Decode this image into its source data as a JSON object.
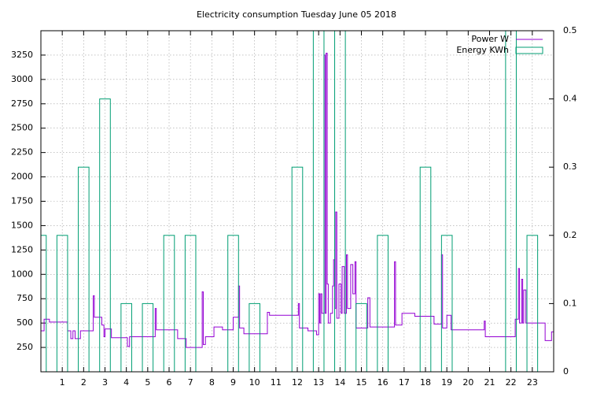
{
  "chart_data": {
    "type": "line",
    "title": "Electricity consumption Tuesday June 05 2018",
    "xlim": [
      0,
      24
    ],
    "xticks": [
      1,
      2,
      3,
      4,
      5,
      6,
      7,
      8,
      9,
      10,
      11,
      12,
      13,
      14,
      15,
      16,
      17,
      18,
      19,
      20,
      21,
      22,
      23
    ],
    "ylim": [
      0,
      3500
    ],
    "yticks": [
      250,
      500,
      750,
      1000,
      1250,
      1500,
      1750,
      2000,
      2250,
      2500,
      2750,
      3000,
      3250
    ],
    "y2lim": [
      0,
      0.5
    ],
    "y2ticks": [
      0,
      0.1,
      0.2,
      0.3,
      0.4,
      0.5
    ],
    "grid": true,
    "legend": "top-right",
    "series": [
      {
        "name": "Power W",
        "color": "#9400d3",
        "style": "steps",
        "x": [
          0,
          0.15,
          0.4,
          1.25,
          1.4,
          1.5,
          1.6,
          1.85,
          2.45,
          2.5,
          2.85,
          2.95,
          3.0,
          3.3,
          4.05,
          4.15,
          5.35,
          5.4,
          6.4,
          6.8,
          7.55,
          7.6,
          7.7,
          8.1,
          8.5,
          9.0,
          9.25,
          9.3,
          9.5,
          10.6,
          10.7,
          12.05,
          12.1,
          12.5,
          12.9,
          13.0,
          13.05,
          13.1,
          13.15,
          13.25,
          13.3,
          13.35,
          13.4,
          13.45,
          13.55,
          13.65,
          13.7,
          13.75,
          13.8,
          13.85,
          13.95,
          14.05,
          14.1,
          14.2,
          14.3,
          14.35,
          14.5,
          14.6,
          14.7,
          14.75,
          15.3,
          15.4,
          16.55,
          16.6,
          16.9,
          17.5,
          18.4,
          18.75,
          18.8,
          19.0,
          19.2,
          20.75,
          20.8,
          22.2,
          22.35,
          22.4,
          22.5,
          22.55,
          22.6,
          22.7,
          23.6,
          23.9,
          24
        ],
        "values": [
          420,
          540,
          510,
          420,
          340,
          420,
          340,
          420,
          780,
          560,
          480,
          360,
          440,
          350,
          260,
          360,
          650,
          430,
          340,
          250,
          820,
          280,
          360,
          460,
          430,
          560,
          880,
          450,
          390,
          610,
          580,
          700,
          450,
          420,
          380,
          800,
          500,
          800,
          600,
          3250,
          600,
          3270,
          900,
          500,
          600,
          880,
          1150,
          650,
          1640,
          550,
          900,
          600,
          1080,
          600,
          1200,
          650,
          1100,
          800,
          1130,
          450,
          760,
          460,
          1130,
          480,
          600,
          570,
          490,
          1200,
          450,
          580,
          430,
          520,
          360,
          540,
          1060,
          500,
          950,
          500,
          840,
          500,
          320,
          410,
          410
        ]
      },
      {
        "name": "Energy KWh",
        "color": "#009e73",
        "style": "boxes",
        "axis": "y2",
        "x": [
          0,
          1,
          2,
          3,
          4,
          5,
          6,
          7,
          8,
          9,
          10,
          11,
          12,
          13,
          14,
          15,
          16,
          17,
          18,
          19,
          20,
          21,
          22,
          23
        ],
        "values": [
          0.2,
          0.2,
          0.3,
          0.4,
          0.1,
          0.1,
          0.2,
          0.2,
          0,
          0.2,
          0.1,
          0,
          0.3,
          0.6,
          0.6,
          0.1,
          0.2,
          0,
          0.3,
          0.2,
          0,
          0,
          0.6,
          0.2
        ]
      }
    ]
  }
}
